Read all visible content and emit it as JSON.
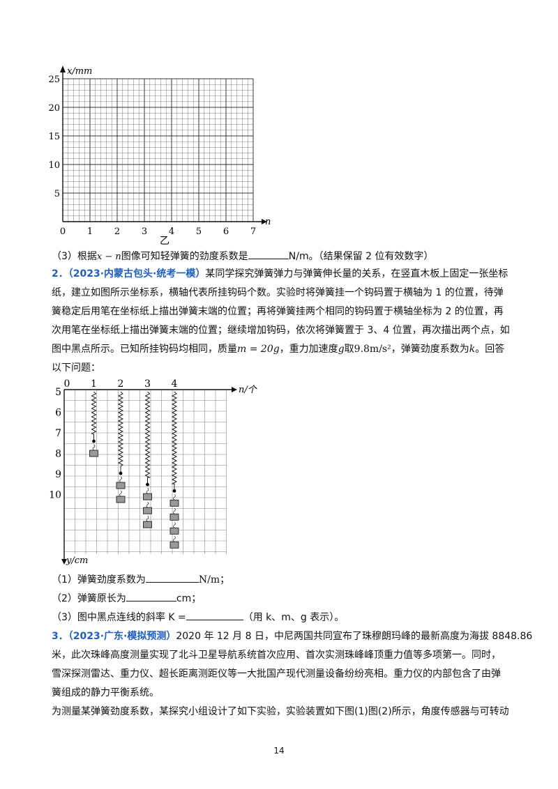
{
  "graph1": {
    "y_axis_label": "x/mm",
    "x_axis_label": "n",
    "y_ticks": [
      "25",
      "20",
      "15",
      "10",
      "5"
    ],
    "x_ticks": [
      "0",
      "1",
      "2",
      "3",
      "4",
      "5",
      "6",
      "7"
    ],
    "caption": "乙"
  },
  "q1_3": {
    "prefix": "（3）根据",
    "formula": "x − n",
    "mid": "图像可知轻弹簧的劲度系数是",
    "unit": "N/m。",
    "note": "（结果保留 2 位有效数字）"
  },
  "problem2": {
    "number": "2．",
    "source": "（2023·内蒙古包头·统考一模）",
    "lines": [
      "某同学探究弹簧弹力与弹簧伸长量的关系，在竖直木板上固定一张坐标",
      "纸，建立如图所示坐标系，横轴代表所挂钩码个数。实验时将弹簧挂一个钩码置于横轴为 1 的位置，待弹",
      "簧稳定后用笔在坐标纸上描出弹簧末端的位置；再将弹簧挂两个相同的钩码置于横轴坐标为 2 的位置，再",
      "次用笔在坐标纸上描出弹簧末端的位置；继续增加钩码，依次将弹簧置于 3、4 位置，再次描出两个点，如"
    ],
    "line5_a": "图中黑点所示。已知所挂钩码均相同，质量",
    "mass": "m = 20g",
    "line5_b": "，重力加速度",
    "g": "g",
    "line5_c": "取",
    "g_value": "9.8m/s²",
    "line5_d": "，弹簧劲度系数为",
    "k": "k",
    "line5_e": "。回答",
    "line6": "以下问题："
  },
  "graph2": {
    "x_ticks": [
      "0",
      "1",
      "2",
      "3",
      "4"
    ],
    "x_axis_label": "n/个",
    "y_ticks": [
      "5",
      "6",
      "7",
      "8",
      "9",
      "10"
    ],
    "y_axis_label": "y/cm"
  },
  "q2": {
    "s1_prefix": "（1）弹簧劲度系数为",
    "s1_unit": "N/m；",
    "s2_prefix": "（2）弹簧原长为",
    "s2_unit": "cm；",
    "s3_prefix": "（3）图中黑点连线的斜率 K =",
    "s3_suffix": "（用 k、m、g 表示）。"
  },
  "problem3": {
    "number": "3．",
    "source": "（2023·广东·模拟预测）",
    "lines": [
      "2020 年 12 月 8 日，中尼两国共同宣布了珠穆朗玛峰的最新高度为海拔 8848.86",
      "米，此次珠峰高度测量实现了北斗卫星导航系统首次应用、首次实测珠峰峰顶重力值等多项第一。同时，",
      "雪深探测雷达、重力仪、超长距离测距仪等一大批国产现代测量设备纷纷亮相。重力仪的内部包含了由弹",
      "簧组成的静力平衡系统。",
      "为测量某弹簧劲度系数，某探究小组设计了如下实验，实验装置如下图(1)图(2)所示，角度传感器与可转动"
    ]
  },
  "page_number": "14"
}
